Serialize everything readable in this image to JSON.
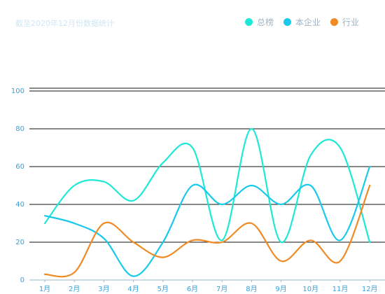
{
  "header": {
    "note": "截至2020年12月份数据统计"
  },
  "chart_data": {
    "type": "line",
    "title": "",
    "xlabel": "",
    "ylabel": "",
    "categories": [
      "1月",
      "2月",
      "3月",
      "4月",
      "5月",
      "6月",
      "7月",
      "8月",
      "9月",
      "10月",
      "11月",
      "12月"
    ],
    "ylim": [
      0,
      100
    ],
    "yticks": [
      0,
      20,
      40,
      60,
      80,
      100
    ],
    "grid": true,
    "legend_position": "top-right",
    "series": [
      {
        "name": "总榜",
        "color": "#1de9d6",
        "values": [
          30,
          50,
          52,
          42,
          62,
          70,
          21,
          80,
          20,
          66,
          70,
          20
        ]
      },
      {
        "name": "本企业",
        "color": "#18c9ea",
        "values": [
          34,
          30,
          22,
          2,
          20,
          50,
          40,
          50,
          40,
          50,
          21,
          60
        ]
      },
      {
        "name": "行业",
        "color": "#f08a24",
        "values": [
          3,
          4,
          30,
          20,
          12,
          21,
          20,
          30,
          10,
          21,
          10,
          50
        ]
      }
    ]
  }
}
